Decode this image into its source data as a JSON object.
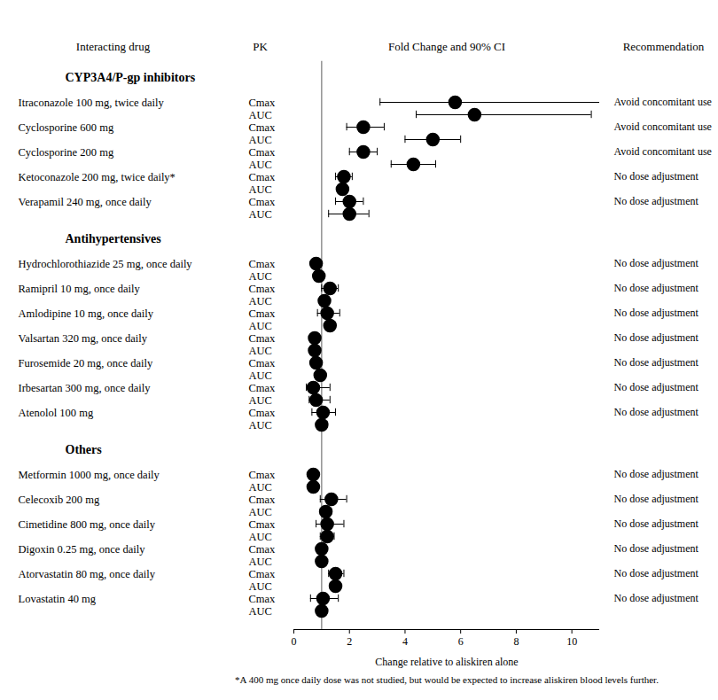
{
  "chart_data": {
    "type": "forest",
    "column_headers": [
      "Interacting drug",
      "PK",
      "Fold Change and 90% CI",
      "Recommendation"
    ],
    "xlabel": "Change relative to aliskiren alone",
    "xlim": [
      0,
      11
    ],
    "xticks": [
      0,
      2,
      4,
      6,
      8,
      10
    ],
    "reference": 1,
    "color": "#000000",
    "marker": "circle",
    "footnote": "*A 400 mg once daily dose was not studied, but would be expected to increase aliskiren blood levels further.",
    "groups": [
      {
        "name": "CYP3A4/P-gp inhibitors",
        "drugs": [
          {
            "name": "Itraconazole 100 mg, twice daily",
            "recommendation": "Avoid concomitant use",
            "pk": [
              {
                "parameter": "Cmax",
                "value": 5.8,
                "ci": [
                  3.1,
                  11.0
                ]
              },
              {
                "parameter": "AUC",
                "value": 6.5,
                "ci": [
                  4.4,
                  10.7
                ]
              }
            ]
          },
          {
            "name": "Cyclosporine 600 mg",
            "recommendation": "Avoid concomitant use",
            "pk": [
              {
                "parameter": "Cmax",
                "value": 2.5,
                "ci": [
                  1.9,
                  3.25
                ]
              },
              {
                "parameter": "AUC",
                "value": 5.0,
                "ci": [
                  4.0,
                  6.0
                ]
              }
            ]
          },
          {
            "name": "Cyclosporine 200 mg",
            "recommendation": "Avoid concomitant use",
            "pk": [
              {
                "parameter": "Cmax",
                "value": 2.5,
                "ci": [
                  2.0,
                  3.0
                ]
              },
              {
                "parameter": "AUC",
                "value": 4.3,
                "ci": [
                  3.5,
                  5.1
                ]
              }
            ]
          },
          {
            "name": "Ketoconazole 200 mg, twice daily*",
            "recommendation": "No dose adjustment",
            "pk": [
              {
                "parameter": "Cmax",
                "value": 1.8,
                "ci": [
                  1.5,
                  2.1
                ]
              },
              {
                "parameter": "AUC",
                "value": 1.75,
                "ci": [
                  1.6,
                  1.9
                ]
              }
            ]
          },
          {
            "name": "Verapamil 240 mg, once daily",
            "recommendation": "No dose adjustment",
            "pk": [
              {
                "parameter": "Cmax",
                "value": 2.0,
                "ci": [
                  1.5,
                  2.5
                ]
              },
              {
                "parameter": "AUC",
                "value": 2.0,
                "ci": [
                  1.25,
                  2.7
                ]
              }
            ]
          }
        ]
      },
      {
        "name": "Antihypertensives",
        "drugs": [
          {
            "name": "Hydrochlorothiazide 25 mg, once daily",
            "recommendation": "No dose adjustment",
            "pk": [
              {
                "parameter": "Cmax",
                "value": 0.8,
                "ci": [
                  0.7,
                  0.9
                ]
              },
              {
                "parameter": "AUC",
                "value": 0.9,
                "ci": [
                  0.85,
                  1.0
                ]
              }
            ]
          },
          {
            "name": "Ramipril 10 mg, once daily",
            "recommendation": "No dose adjustment",
            "pk": [
              {
                "parameter": "Cmax",
                "value": 1.3,
                "ci": [
                  1.0,
                  1.6
                ]
              },
              {
                "parameter": "AUC",
                "value": 1.1,
                "ci": [
                  1.0,
                  1.25
                ]
              }
            ]
          },
          {
            "name": "Amlodipine 10 mg, once daily",
            "recommendation": "No dose adjustment",
            "pk": [
              {
                "parameter": "Cmax",
                "value": 1.2,
                "ci": [
                  0.85,
                  1.65
                ]
              },
              {
                "parameter": "AUC",
                "value": 1.3,
                "ci": [
                  1.15,
                  1.5
                ]
              }
            ]
          },
          {
            "name": "Valsartan 320 mg, once daily",
            "recommendation": "No dose adjustment",
            "pk": [
              {
                "parameter": "Cmax",
                "value": 0.75,
                "ci": [
                  0.6,
                  0.9
                ]
              },
              {
                "parameter": "AUC",
                "value": 0.75,
                "ci": [
                  0.65,
                  0.85
                ]
              }
            ]
          },
          {
            "name": "Furosemide 20 mg, once daily",
            "recommendation": "No dose adjustment",
            "pk": [
              {
                "parameter": "Cmax",
                "value": 0.8,
                "ci": [
                  0.7,
                  0.9
                ]
              },
              {
                "parameter": "AUC",
                "value": 0.95,
                "ci": [
                  0.85,
                  1.05
                ]
              }
            ]
          },
          {
            "name": "Irbesartan 300 mg, once daily",
            "recommendation": "No dose adjustment",
            "pk": [
              {
                "parameter": "Cmax",
                "value": 0.7,
                "ci": [
                  0.45,
                  1.3
                ]
              },
              {
                "parameter": "AUC",
                "value": 0.8,
                "ci": [
                  0.55,
                  1.3
                ]
              }
            ]
          },
          {
            "name": "Atenolol 100 mg",
            "recommendation": "No dose adjustment",
            "pk": [
              {
                "parameter": "Cmax",
                "value": 1.05,
                "ci": [
                  0.65,
                  1.5
                ]
              },
              {
                "parameter": "AUC",
                "value": 1.0,
                "ci": [
                  0.85,
                  1.2
                ]
              }
            ]
          }
        ]
      },
      {
        "name": "Others",
        "drugs": [
          {
            "name": "Metformin 1000 mg, once daily",
            "recommendation": "No dose adjustment",
            "pk": [
              {
                "parameter": "Cmax",
                "value": 0.7,
                "ci": [
                  0.6,
                  0.85
                ]
              },
              {
                "parameter": "AUC",
                "value": 0.7,
                "ci": [
                  0.65,
                  0.8
                ]
              }
            ]
          },
          {
            "name": "Celecoxib 200 mg",
            "recommendation": "No dose adjustment",
            "pk": [
              {
                "parameter": "Cmax",
                "value": 1.35,
                "ci": [
                  0.95,
                  1.9
                ]
              },
              {
                "parameter": "AUC",
                "value": 1.15,
                "ci": [
                  0.95,
                  1.35
                ]
              }
            ]
          },
          {
            "name": "Cimetidine 800 mg, once daily",
            "recommendation": "No dose adjustment",
            "pk": [
              {
                "parameter": "Cmax",
                "value": 1.2,
                "ci": [
                  0.8,
                  1.8
                ]
              },
              {
                "parameter": "AUC",
                "value": 1.2,
                "ci": [
                  0.95,
                  1.45
                ]
              }
            ]
          },
          {
            "name": "Digoxin 0.25 mg, once daily",
            "recommendation": "No dose adjustment",
            "pk": [
              {
                "parameter": "Cmax",
                "value": 1.0,
                "ci": [
                  0.85,
                  1.15
                ]
              },
              {
                "parameter": "AUC",
                "value": 1.0,
                "ci": [
                  0.9,
                  1.1
                ]
              }
            ]
          },
          {
            "name": "Atorvastatin 80 mg, once daily",
            "recommendation": "No dose adjustment",
            "pk": [
              {
                "parameter": "Cmax",
                "value": 1.5,
                "ci": [
                  1.25,
                  1.8
                ]
              },
              {
                "parameter": "AUC",
                "value": 1.5,
                "ci": [
                  1.3,
                  1.65
                ]
              }
            ]
          },
          {
            "name": "Lovastatin 40 mg",
            "recommendation": "No dose adjustment",
            "pk": [
              {
                "parameter": "Cmax",
                "value": 1.05,
                "ci": [
                  0.6,
                  1.6
                ]
              },
              {
                "parameter": "AUC",
                "value": 1.0,
                "ci": [
                  0.85,
                  1.15
                ]
              }
            ]
          }
        ]
      }
    ]
  }
}
